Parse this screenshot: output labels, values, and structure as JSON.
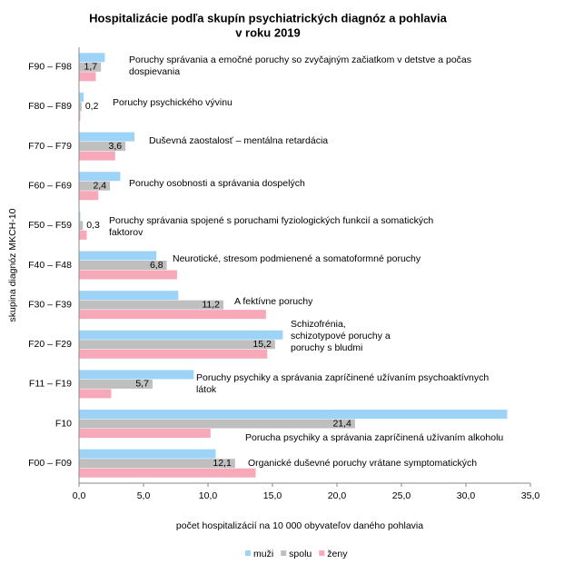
{
  "chart_data": {
    "type": "hbar",
    "title": [
      "Hospitalizácie podľa skupín  psychiatrických  diagnóz a pohlavia",
      "v roku 2019"
    ],
    "xlabel": "počet hospitalizácií na 10 000 obyvateľov daného pohlavia",
    "ylabel": "skupina diagnóz MKCH-10",
    "categories": [
      "F90 – F98",
      "F80 – F89",
      "F70 – F79",
      "F60 – F69",
      "F50 – F59",
      "F40 – F48",
      "F30 – F39",
      "F20 – F29",
      "F11 – F19",
      "F10",
      "F00 – F09"
    ],
    "descriptions": [
      [
        "Poruchy správania a emočné poruchy so zvyčajným začiatkom v detstve a počas",
        "dospievania"
      ],
      [
        "Poruchy psychického vývinu"
      ],
      [
        "Duševná zaostalosť – mentálna  retardácia"
      ],
      [
        "Poruchy osobnosti a správania dospelých"
      ],
      [
        "Poruchy správania spojené s poruchami fyziologických funkcií a somatických",
        "faktorov"
      ],
      [
        "Neurotické, stresom podmienené  a somatoformné poruchy"
      ],
      [
        "A fektívne poruchy"
      ],
      [
        "Schizofrénia,",
        "schizotypové poruchy a",
        "poruchy s bludmi"
      ],
      [
        "Poruchy psychiky a správania zapríčinené užívaním psychoaktívnych",
        "látok"
      ],
      [
        "Porucha psychiky a správania zapríčinená užívaním alkoholu"
      ],
      [
        "Organické duševné poruchy vrátane symptomatických"
      ]
    ],
    "series": [
      {
        "name": "muži",
        "color": "#9dd3f7",
        "values": [
          2.0,
          0.35,
          4.3,
          3.2,
          0.1,
          6.0,
          7.7,
          15.8,
          8.9,
          33.2,
          10.6
        ]
      },
      {
        "name": "spolu",
        "color": "#bfbfbf",
        "values": [
          1.7,
          0.2,
          3.6,
          2.4,
          0.3,
          6.8,
          11.2,
          15.2,
          5.7,
          21.4,
          12.1
        ],
        "value_labels": [
          "1,7",
          "0,2",
          "3,6",
          "2,4",
          "0,3",
          "6,8",
          "11,2",
          "15,2",
          "5,7",
          "21,4",
          "12,1"
        ]
      },
      {
        "name": "ženy",
        "color": "#f7a9b9",
        "values": [
          1.3,
          0.1,
          2.8,
          1.5,
          0.6,
          7.6,
          14.5,
          14.6,
          2.5,
          10.2,
          13.7
        ]
      }
    ],
    "xlim": [
      0,
      35
    ],
    "xticks": [
      {
        "value": 0,
        "label": "0,0"
      },
      {
        "value": 5,
        "label": "5,0"
      },
      {
        "value": 10,
        "label": "10,0"
      },
      {
        "value": 15,
        "label": "15,0"
      },
      {
        "value": 20,
        "label": "20,0"
      },
      {
        "value": 25,
        "label": "25,0"
      },
      {
        "value": 30,
        "label": "30,0"
      },
      {
        "value": 35,
        "label": "35,0"
      }
    ],
    "legend": "bottom"
  }
}
